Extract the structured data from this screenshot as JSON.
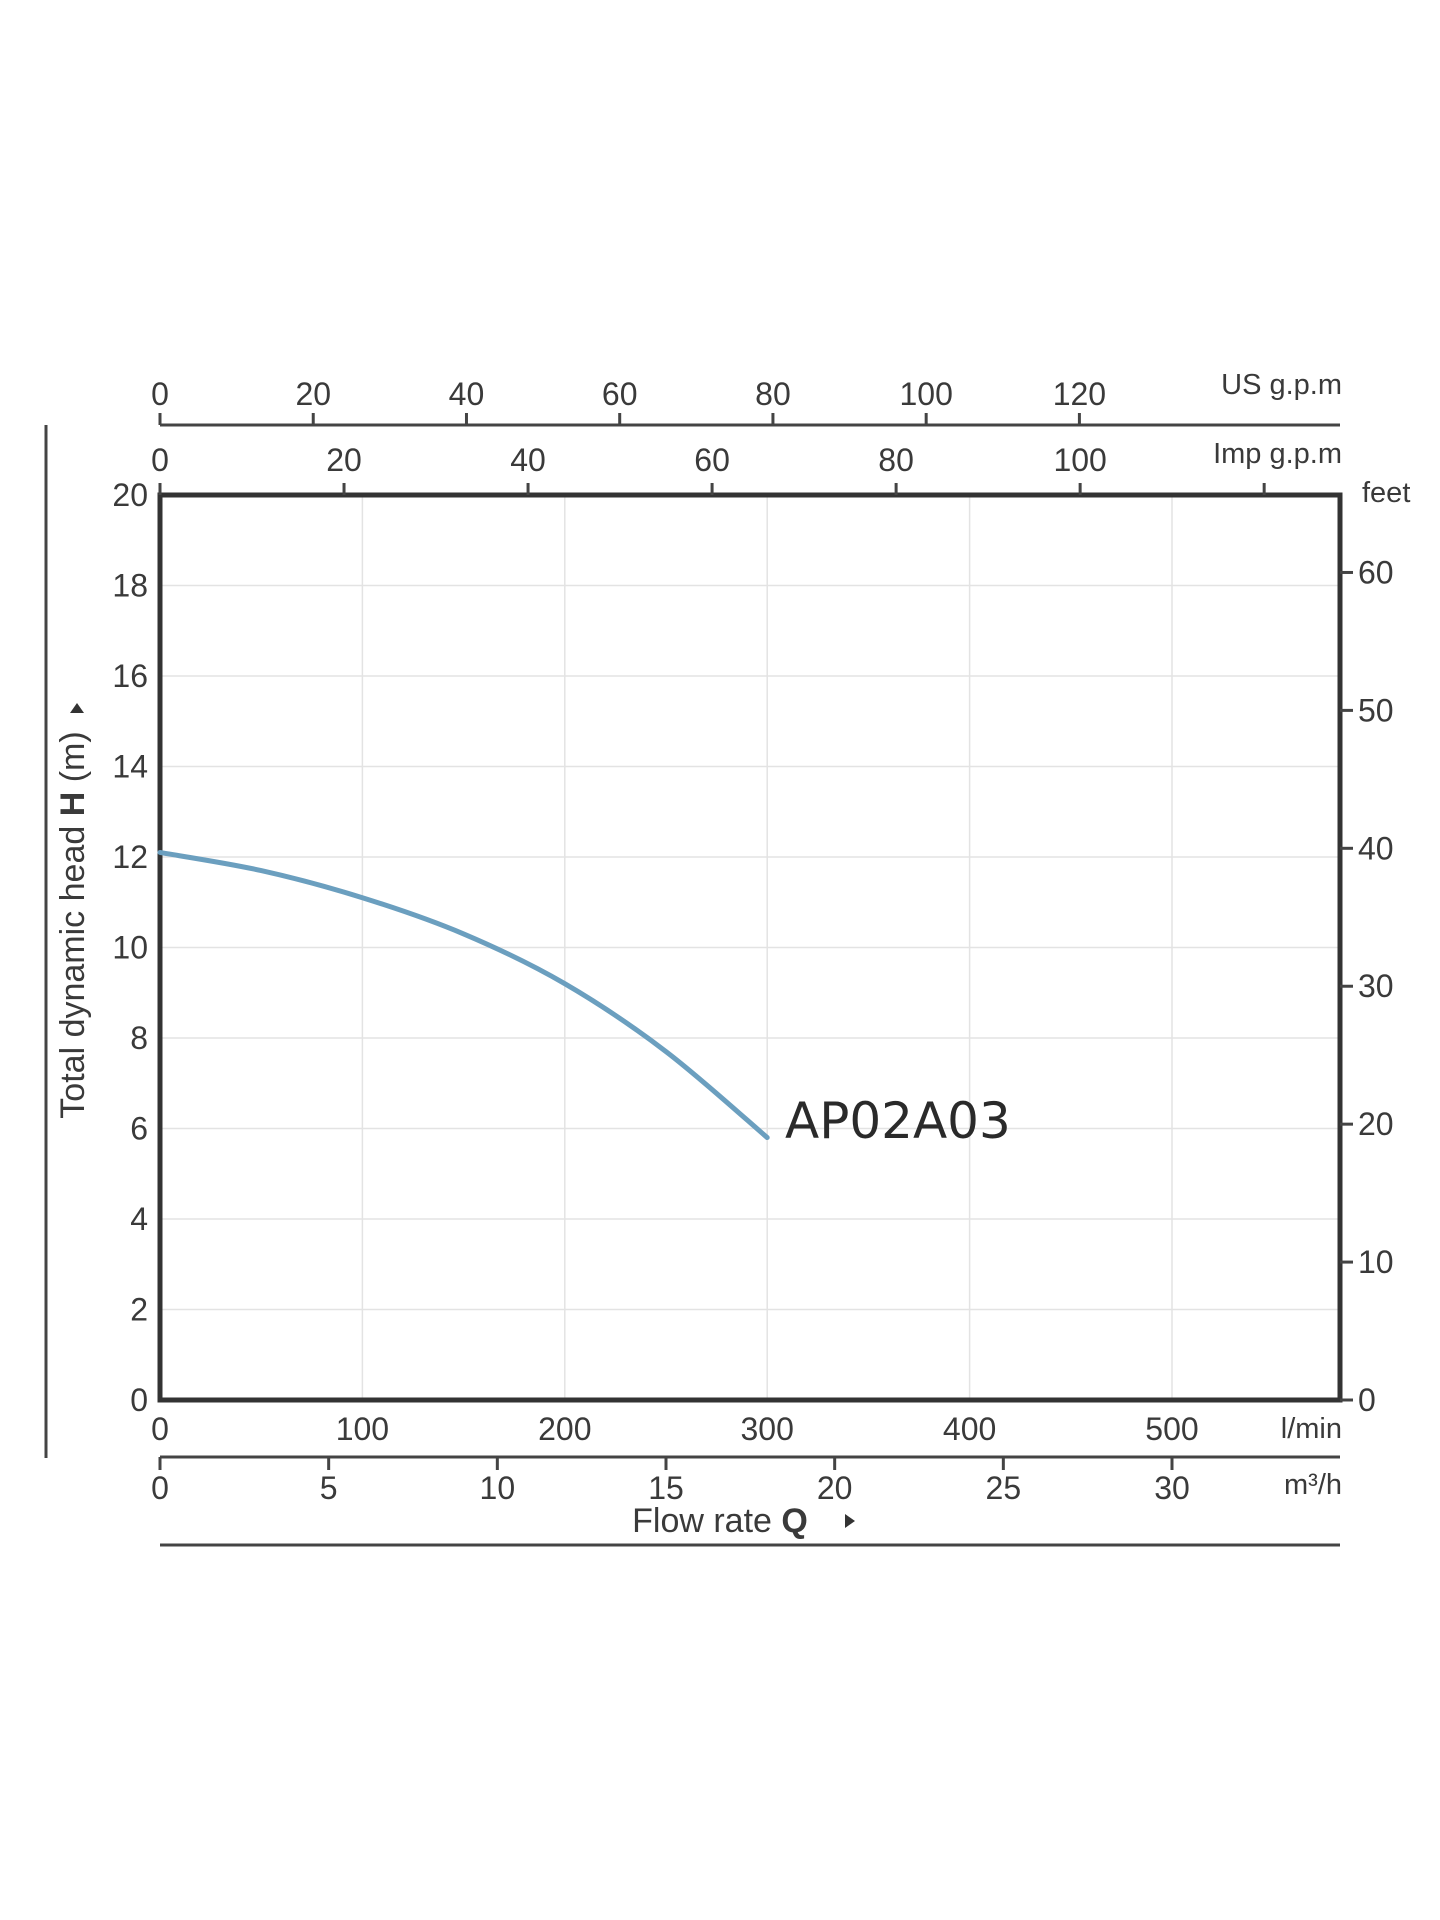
{
  "chart_data": {
    "type": "line",
    "series": [
      {
        "name": "AP02A03",
        "x": [
          0,
          50,
          100,
          150,
          200,
          250,
          300
        ],
        "y": [
          12.1,
          11.7,
          11.1,
          10.3,
          9.2,
          7.7,
          5.8
        ],
        "color": "#6b9fbf"
      }
    ],
    "x_axis": {
      "label": "Flow rate",
      "symbol": "Q",
      "unit": "l/min",
      "range": [
        0,
        583
      ],
      "ticks": [
        "0",
        "100",
        "200",
        "300",
        "400",
        "500"
      ]
    },
    "x_axis_secondary": {
      "unit": "m³/h",
      "ticks": [
        "0",
        "5",
        "10",
        "15",
        "20",
        "25",
        "30"
      ]
    },
    "top_axis_us": {
      "unit": "US g.p.m",
      "ticks": [
        "0",
        "20",
        "40",
        "60",
        "80",
        "100",
        "120"
      ]
    },
    "top_axis_imp": {
      "unit": "Imp g.p.m",
      "ticks": [
        "0",
        "20",
        "40",
        "60",
        "80",
        "100"
      ]
    },
    "y_axis": {
      "label": "Total dynamic head",
      "symbol": "H",
      "unit_suffix": "(m)",
      "range": [
        0,
        20
      ],
      "ticks": [
        "0",
        "2",
        "4",
        "6",
        "8",
        "10",
        "12",
        "14",
        "16",
        "18",
        "20"
      ]
    },
    "y_axis_secondary": {
      "unit": "feet",
      "ticks": [
        "0",
        "10",
        "20",
        "30",
        "40",
        "50",
        "60"
      ]
    },
    "grid": true,
    "curve_label": "AP02A03"
  }
}
